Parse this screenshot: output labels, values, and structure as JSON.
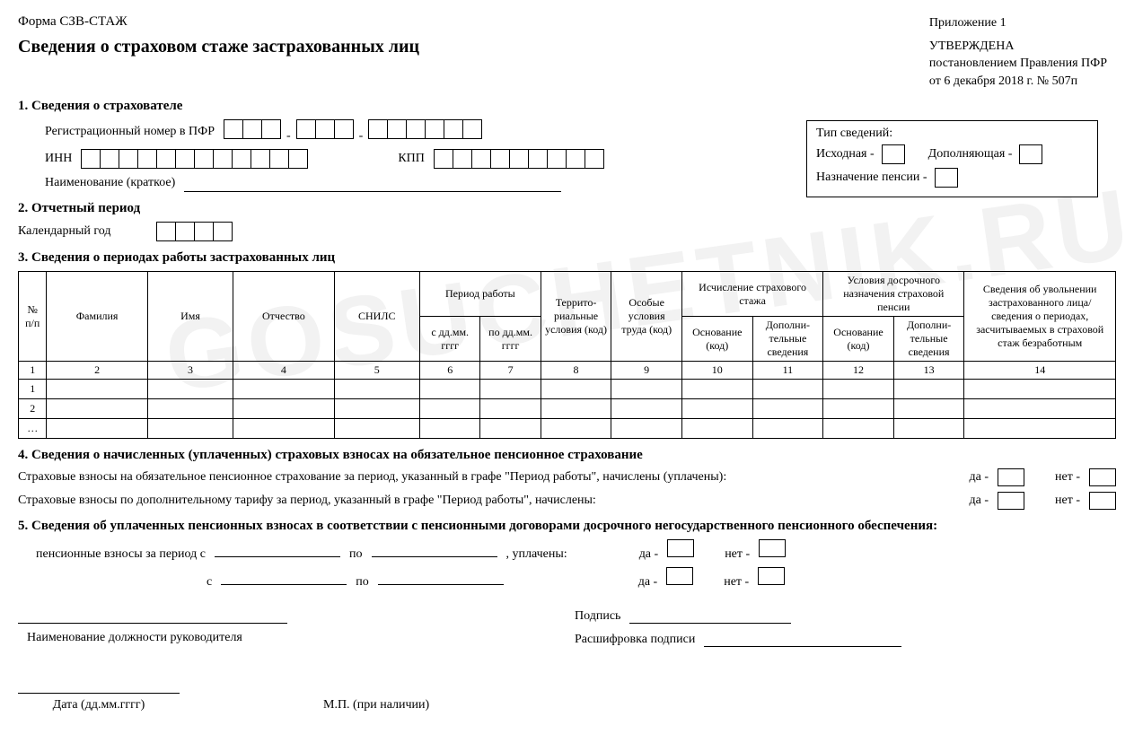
{
  "header": {
    "appendix": "Приложение 1",
    "approved": "УТВЕРЖДЕНА",
    "decree_line1": "постановлением Правления ПФР",
    "decree_line2": "от 6 декабря 2018 г. № 507п",
    "form_code": "Форма СЗВ-СТАЖ",
    "main_title": "Сведения о страховом стаже застрахованных лиц"
  },
  "info_type": {
    "title": "Тип сведений:",
    "initial": "Исходная -",
    "supplementary": "Дополняющая -",
    "pension": "Назначение пенсии -"
  },
  "section1": {
    "title": "1. Сведения о страхователе",
    "reg_label": "Регистрационный номер в ПФР",
    "reg_groups": [
      3,
      3,
      6
    ],
    "inn_label": "ИНН",
    "inn_cells": 12,
    "kpp_label": "КПП",
    "kpp_cells": 9,
    "name_label": "Наименование (краткое)"
  },
  "section2": {
    "title": "2. Отчетный период",
    "year_label": "Календарный год",
    "year_cells": 4
  },
  "section3": {
    "title": "3. Сведения о периодах работы застрахованных лиц",
    "columns": {
      "num": "№\nп/п",
      "lastname": "Фамилия",
      "firstname": "Имя",
      "patronymic": "Отчество",
      "snils": "СНИЛС",
      "period": "Период работы",
      "period_from": "с дд.мм. гггг",
      "period_to": "по дд.мм. гггг",
      "terr": "Террито­риальные условия (код)",
      "special": "Особые условия труда (код)",
      "calc": "Исчисление страхового стажа",
      "calc_base": "Основание (код)",
      "calc_add": "Дополни­тельные сведения",
      "early": "Условия досрочного назначения страховой пенсии",
      "early_base": "Основание (код)",
      "early_add": "Дополни­тельные сведения",
      "dismiss": "Сведения об увольнении застрахованного лица/ сведения о периодах, засчитываемых в страховой стаж безработным"
    },
    "col_nums": [
      "1",
      "2",
      "3",
      "4",
      "5",
      "6",
      "7",
      "8",
      "9",
      "10",
      "11",
      "12",
      "13",
      "14"
    ],
    "row_labels": [
      "1",
      "2",
      "…"
    ]
  },
  "section4": {
    "title": "4. Сведения о начисленных (уплаченных) страховых взносах на обязательное пенсионное страхование",
    "line1": "Страховые взносы на обязательное пенсионное страхование за период, указанный в графе \"Период работы\", начислены (уплачены):",
    "line2": "Страховые взносы по дополнительному тарифу за период, указанный в графе \"Период работы\", начислены:",
    "yes": "да -",
    "no": "нет -"
  },
  "section5": {
    "title": "5. Сведения об уплаченных пенсионных взносах в соответствии с пенсионными договорами досрочного негосударственного пенсионного обеспечения:",
    "line1_pre": "пенсионные взносы за период с",
    "po": "по",
    "paid": ", уплачены:",
    "s": "с",
    "yes": "да -",
    "no": "нет -"
  },
  "signatures": {
    "position_label": "Наименование должности руководителя",
    "sign_label": "Подпись",
    "decode_label": "Расшифровка подписи",
    "date_label": "Дата (дд.мм.гггг)",
    "stamp_label": "М.П. (при наличии)"
  },
  "watermark": "GOSUCHETNIK.RU"
}
